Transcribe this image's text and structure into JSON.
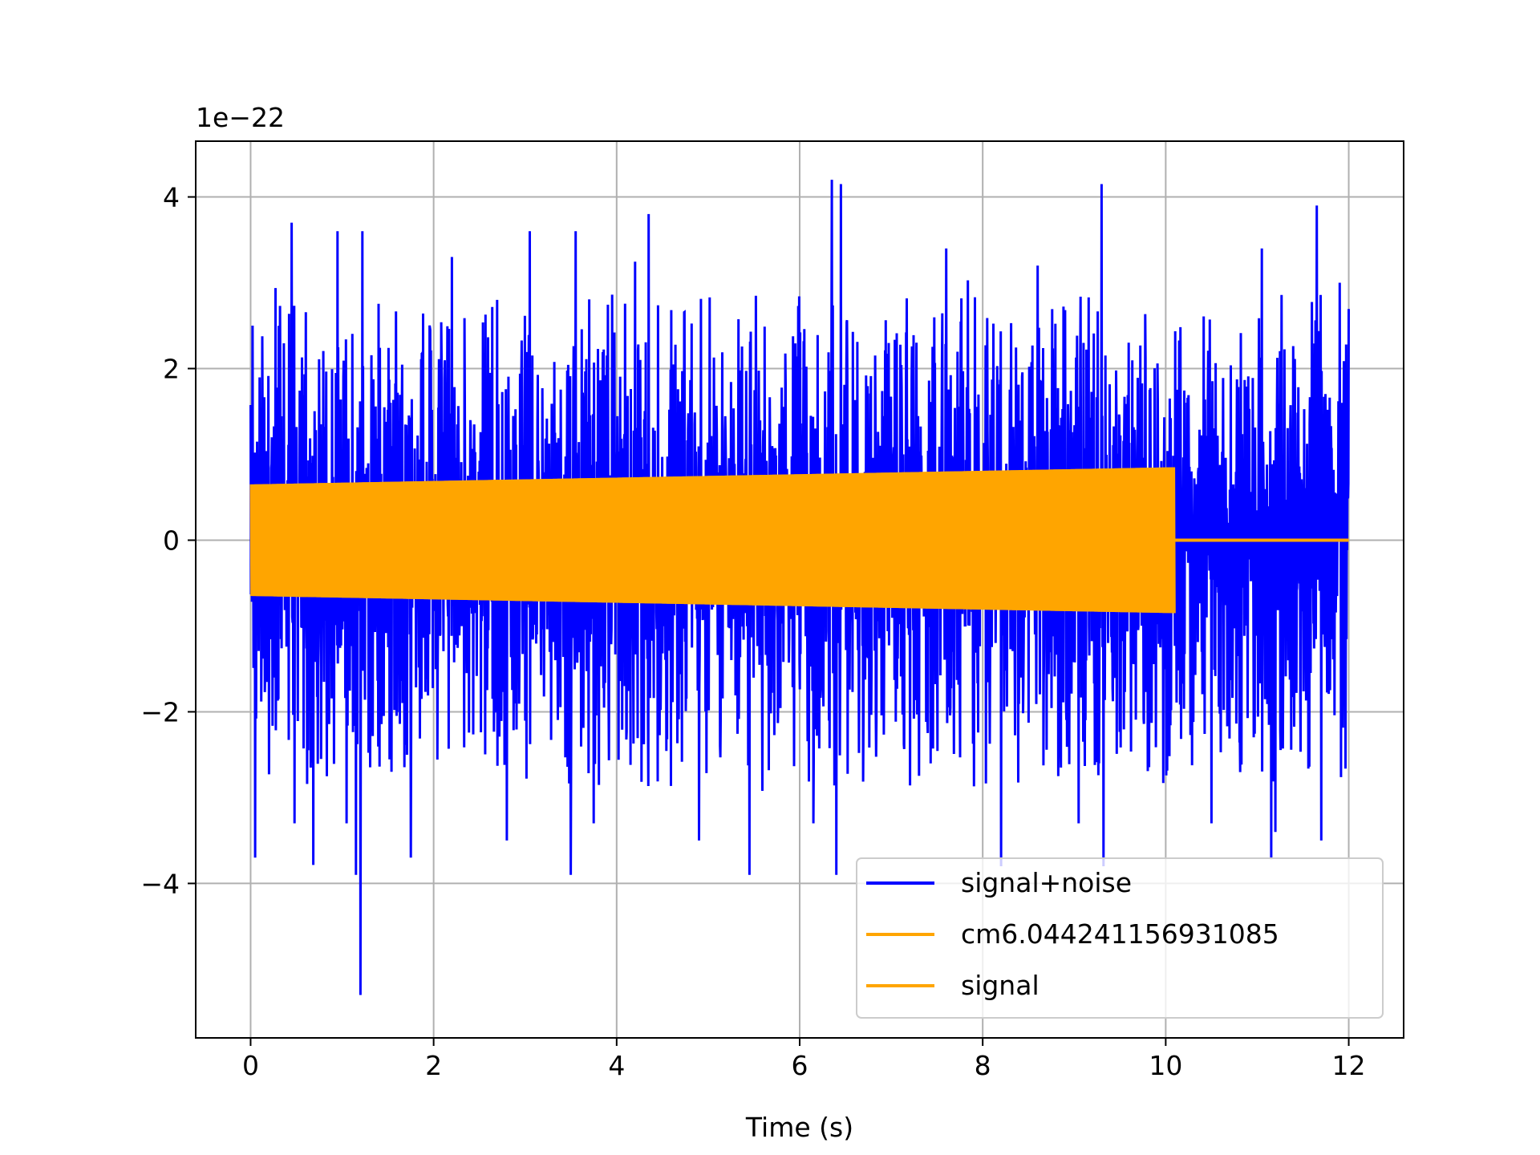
{
  "chart_data": {
    "type": "line",
    "xlabel": "Time (s)",
    "ylabel": "",
    "offset_text": "1e−22",
    "xlim": [
      -0.6,
      12.6
    ],
    "ylim": [
      -5.8,
      4.65
    ],
    "x_ticks": [
      0,
      2,
      4,
      6,
      8,
      10,
      12
    ],
    "x_tick_labels": [
      "0",
      "2",
      "4",
      "6",
      "8",
      "10",
      "12"
    ],
    "y_ticks": [
      -4,
      -2,
      0,
      2,
      4
    ],
    "y_tick_labels": [
      "−4",
      "−2",
      "0",
      "2",
      "4"
    ],
    "grid": true,
    "legend_position": "lower right",
    "series": [
      {
        "name": "signal+noise",
        "color": "#0000ff",
        "x_range": [
          0,
          12
        ],
        "typical_envelope": [
          -2.3,
          2.3
        ],
        "peaks": [
          {
            "x": 0.02,
            "y": 2.5
          },
          {
            "x": 0.05,
            "y": -3.7
          },
          {
            "x": 0.45,
            "y": 3.7
          },
          {
            "x": 0.48,
            "y": -3.3
          },
          {
            "x": 0.95,
            "y": 3.6
          },
          {
            "x": 1.05,
            "y": -3.3
          },
          {
            "x": 1.15,
            "y": -3.9
          },
          {
            "x": 1.2,
            "y": -5.3
          },
          {
            "x": 1.22,
            "y": 3.6
          },
          {
            "x": 1.75,
            "y": -3.7
          },
          {
            "x": 2.2,
            "y": 3.3
          },
          {
            "x": 2.8,
            "y": -3.5
          },
          {
            "x": 3.05,
            "y": 3.6
          },
          {
            "x": 3.55,
            "y": 3.6
          },
          {
            "x": 3.5,
            "y": -3.9
          },
          {
            "x": 3.75,
            "y": -3.3
          },
          {
            "x": 4.35,
            "y": 3.8
          },
          {
            "x": 4.9,
            "y": -3.5
          },
          {
            "x": 5.45,
            "y": 3.9
          },
          {
            "x": 5.45,
            "y": -3.9
          },
          {
            "x": 6.15,
            "y": -3.3
          },
          {
            "x": 6.35,
            "y": 4.2
          },
          {
            "x": 6.4,
            "y": -3.9
          },
          {
            "x": 6.45,
            "y": 4.15
          },
          {
            "x": 7.6,
            "y": 3.4
          },
          {
            "x": 8.2,
            "y": -3.8
          },
          {
            "x": 8.6,
            "y": 3.2
          },
          {
            "x": 9.05,
            "y": -3.3
          },
          {
            "x": 9.3,
            "y": 4.15
          },
          {
            "x": 9.32,
            "y": -3.8
          },
          {
            "x": 10.5,
            "y": -3.3
          },
          {
            "x": 11.05,
            "y": 3.4
          },
          {
            "x": 11.2,
            "y": -3.4
          },
          {
            "x": 11.7,
            "y": -3.5
          },
          {
            "x": 11.65,
            "y": 3.9
          },
          {
            "x": 11.9,
            "y": 3.0
          }
        ]
      },
      {
        "name": "cm6.044241156931085",
        "color": "#ffa500",
        "x_range": [
          0,
          10.1
        ],
        "amplitude_start": 0.65,
        "amplitude_end": 0.85
      },
      {
        "name": "signal",
        "color": "#ffa500",
        "x_range": [
          0,
          12
        ],
        "description_values": {
          "value_after_10_1s": 0
        }
      }
    ]
  }
}
